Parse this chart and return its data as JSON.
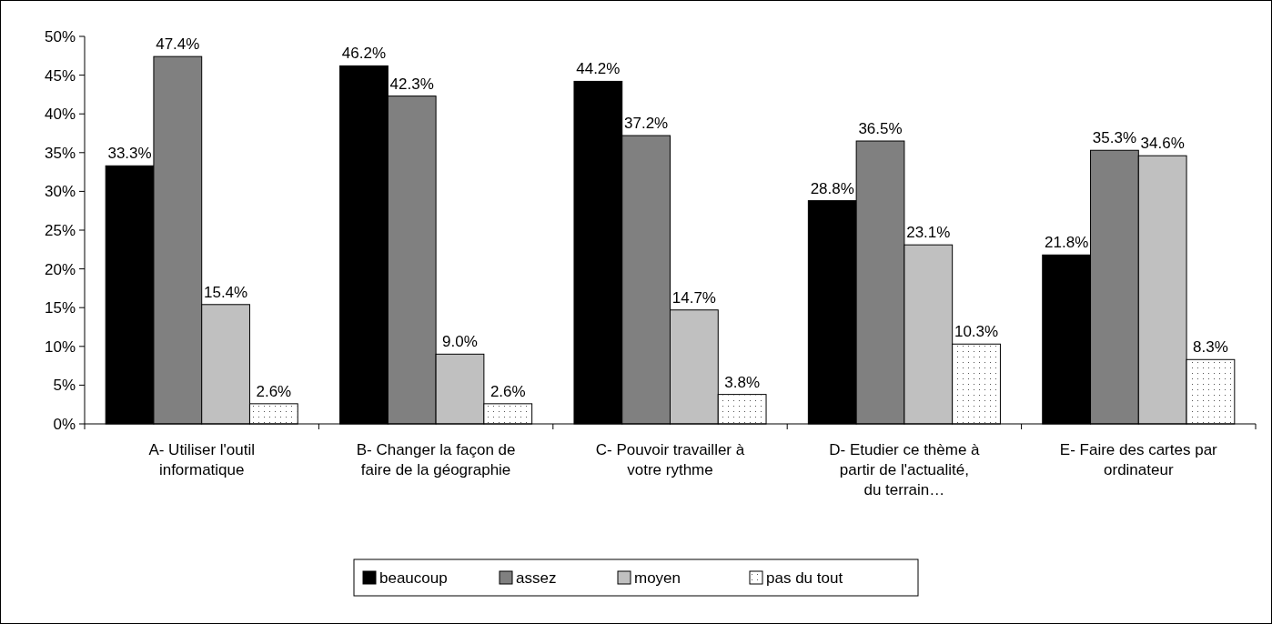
{
  "chart_data": {
    "type": "bar",
    "categories": [
      "A- Utiliser l'outil informatique",
      "B- Changer la façon de faire de la géographie",
      "C- Pouvoir travailler à votre rythme",
      "D- Etudier ce thème à partir de l'actualité, du terrain…",
      "E- Faire des cartes par ordinateur"
    ],
    "series": [
      {
        "name": "beaucoup",
        "color": "#000000",
        "values": [
          33.3,
          46.2,
          44.2,
          28.8,
          21.8
        ],
        "value_labels": [
          "33.3%",
          "46.2%",
          "44.2%",
          "28.8%",
          "21.8%"
        ]
      },
      {
        "name": "assez",
        "color": "#808080",
        "values": [
          47.4,
          42.3,
          37.2,
          36.5,
          35.3
        ],
        "value_labels": [
          "47.4%",
          "42.3%",
          "37.2%",
          "36.5%",
          "35.3%"
        ]
      },
      {
        "name": "moyen",
        "color": "#c0c0c0",
        "values": [
          15.4,
          9.0,
          14.7,
          23.1,
          34.6
        ],
        "value_labels": [
          "15.4%",
          "9.0%",
          "14.7%",
          "23.1%",
          "34.6%"
        ]
      },
      {
        "name": "pas du tout",
        "color": "#ffffff",
        "values": [
          2.6,
          2.6,
          3.8,
          10.3,
          8.3
        ],
        "value_labels": [
          "2.6%",
          "2.6%",
          "3.8%",
          "10.3%",
          "8.3%"
        ]
      }
    ],
    "ylim": [
      0,
      50
    ],
    "yticks": [
      {
        "value": 0,
        "label": "0%"
      },
      {
        "value": 5,
        "label": "5%"
      },
      {
        "value": 10,
        "label": "10%"
      },
      {
        "value": 15,
        "label": "15%"
      },
      {
        "value": 20,
        "label": "20%"
      },
      {
        "value": 25,
        "label": "25%"
      },
      {
        "value": 30,
        "label": "30%"
      },
      {
        "value": 35,
        "label": "35%"
      },
      {
        "value": 40,
        "label": "40%"
      },
      {
        "value": 45,
        "label": "45%"
      },
      {
        "value": 50,
        "label": "50%"
      }
    ],
    "grid": false,
    "legend": "bottom"
  }
}
